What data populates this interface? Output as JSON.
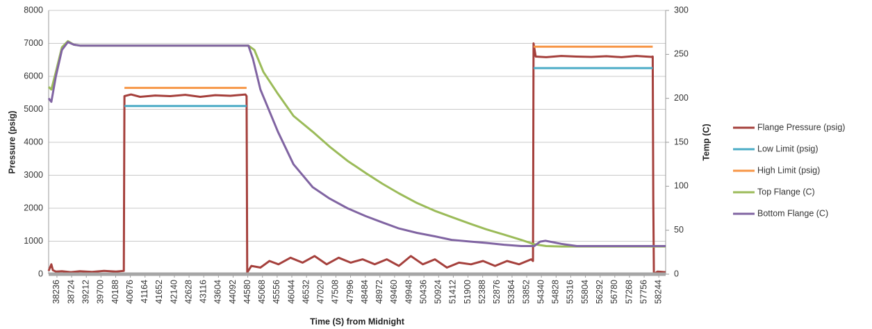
{
  "chart_data": {
    "type": "line",
    "x_label": "Time (S) from Midnight",
    "y_label": "Pressure (psig)",
    "y2_label": "Temp (C)",
    "xlim": [
      37960,
      58470
    ],
    "xticks": [
      38236,
      38724,
      39212,
      39700,
      40188,
      40676,
      41164,
      41652,
      42140,
      42628,
      43116,
      43604,
      44092,
      44580,
      45068,
      45556,
      46044,
      46532,
      47020,
      47508,
      47996,
      48484,
      48972,
      49460,
      49948,
      50436,
      50924,
      51412,
      51900,
      52388,
      52876,
      53364,
      53852,
      54340,
      54828,
      55316,
      55804,
      56292,
      56780,
      57268,
      57756,
      58244
    ],
    "ylim": [
      0,
      8000
    ],
    "yticks": [
      0,
      1000,
      2000,
      3000,
      4000,
      5000,
      6000,
      7000,
      8000
    ],
    "y2lim": [
      0,
      300
    ],
    "y2ticks": [
      0,
      50,
      100,
      150,
      200,
      250,
      300
    ],
    "grid": true,
    "legend": "right",
    "series": [
      {
        "name": "Flange Pressure (psig)",
        "color": "#a5403c",
        "axis": "y",
        "x": [
          37960,
          38050,
          38100,
          38200,
          38400,
          38700,
          39000,
          39400,
          39800,
          40200,
          40460,
          40480,
          40700,
          41000,
          41500,
          42000,
          42500,
          43000,
          43500,
          44000,
          44500,
          44540,
          44560,
          44700,
          45000,
          45300,
          45600,
          46000,
          46400,
          46800,
          47200,
          47600,
          48000,
          48400,
          48800,
          49200,
          49600,
          50000,
          50400,
          50800,
          51200,
          51600,
          52000,
          52400,
          52800,
          53200,
          53600,
          54000,
          54060,
          54080,
          54150,
          54500,
          55000,
          55500,
          56000,
          56500,
          57000,
          57500,
          58000,
          58040,
          58060,
          58080,
          58200,
          58470
        ],
        "values": [
          100,
          300,
          120,
          80,
          90,
          60,
          90,
          70,
          100,
          80,
          100,
          5400,
          5450,
          5380,
          5420,
          5400,
          5440,
          5380,
          5430,
          5410,
          5450,
          5400,
          50,
          250,
          200,
          400,
          300,
          500,
          350,
          550,
          300,
          500,
          350,
          450,
          300,
          450,
          250,
          550,
          300,
          450,
          200,
          350,
          300,
          400,
          250,
          400,
          300,
          450,
          400,
          7000,
          6600,
          6580,
          6620,
          6600,
          6590,
          6610,
          6580,
          6620,
          6590,
          6600,
          2300,
          0,
          80,
          60
        ]
      },
      {
        "name": "Low Limit (psig)",
        "color": "#4bacc6",
        "axis": "y",
        "x": [
          40480,
          44540,
          49000,
          54080,
          58040
        ],
        "values": [
          5100,
          5100,
          null,
          6250,
          6250
        ]
      },
      {
        "name": "High Limit (psig)",
        "color": "#f79646",
        "axis": "y",
        "x": [
          40480,
          44540,
          49000,
          54080,
          58040
        ],
        "values": [
          5650,
          5650,
          null,
          6900,
          6900
        ]
      },
      {
        "name": "Top Flange (C)",
        "color": "#9bbb59",
        "axis": "y2",
        "x": [
          37960,
          38050,
          38200,
          38400,
          38600,
          38800,
          39000,
          44600,
          44800,
          45100,
          45582,
          46100,
          46737,
          47300,
          47892,
          48500,
          49047,
          49600,
          50202,
          50800,
          51357,
          52000,
          52512,
          53100,
          53667,
          54100,
          54500,
          55000,
          58470
        ],
        "values": [
          213,
          210,
          230,
          258,
          265,
          261,
          260,
          260,
          255,
          230,
          205,
          180,
          162,
          145,
          129,
          115,
          103,
          92,
          81,
          72,
          65,
          57,
          51,
          45,
          39,
          34,
          32,
          31.5,
          31.5
        ]
      },
      {
        "name": "Bottom Flange (C)",
        "color": "#8064a2",
        "axis": "y2",
        "x": [
          37960,
          38050,
          38200,
          38400,
          38600,
          38800,
          39000,
          44600,
          44750,
          45000,
          45582,
          46100,
          46737,
          47300,
          47892,
          48500,
          49047,
          49600,
          50202,
          50800,
          51357,
          52000,
          52512,
          53100,
          53667,
          54100,
          54300,
          54475,
          55000,
          55514,
          58470
        ],
        "values": [
          200,
          196,
          225,
          255,
          264,
          261,
          260,
          260,
          245,
          210,
          162,
          125,
          99,
          86,
          75,
          66,
          59,
          52,
          47,
          43,
          39,
          37,
          35.5,
          33.5,
          32,
          32,
          37,
          38,
          34.5,
          32,
          32
        ]
      }
    ]
  }
}
